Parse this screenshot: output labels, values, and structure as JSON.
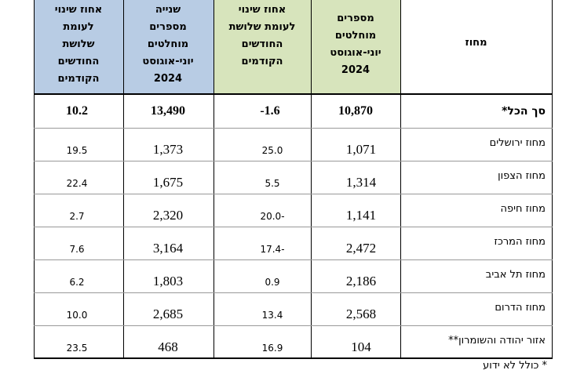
{
  "table": {
    "header": {
      "region": "מחוז",
      "abs_current": [
        "מספרים",
        "מוחלטים",
        "יוני-אוגוסט",
        "2024"
      ],
      "pct_current": [
        "אחוז שינוי",
        "לעומת שלושת",
        "החודשים",
        "הקודמים"
      ],
      "abs_second": [
        "שנייה",
        "מספרים",
        "מוחלטים",
        "יוני-אוגוסט",
        "2024"
      ],
      "pct_second": [
        "אחוז שינוי",
        "לעומת",
        "שלושת",
        "החודשים",
        "הקודמים"
      ]
    },
    "rows": [
      [
        "סך הכל*",
        "10,870",
        "-1.6",
        "13,490",
        "10.2"
      ],
      [
        "מחוז ירושלים",
        "1,071",
        "25.0",
        "1,373",
        "19.5"
      ],
      [
        "מחוז הצפון",
        "1,314",
        "5.5",
        "1,675",
        "22.4"
      ],
      [
        "מחוז חיפה",
        "1,141",
        "20.0-",
        "2,320",
        "2.7"
      ],
      [
        "מחוז המרכז",
        "2,472",
        "17.4-",
        "3,164",
        "7.6"
      ],
      [
        "מחוז תל אביב",
        "2,186",
        "0.9",
        "1,803",
        "6.2"
      ],
      [
        "מחוז הדרום",
        "2,568",
        "13.4",
        "2,685",
        "10.0"
      ],
      [
        "אזור יהודה והשומרון**",
        "104",
        "16.9",
        "468",
        "23.5"
      ]
    ],
    "footnote": "* כולל לא ידוע"
  }
}
